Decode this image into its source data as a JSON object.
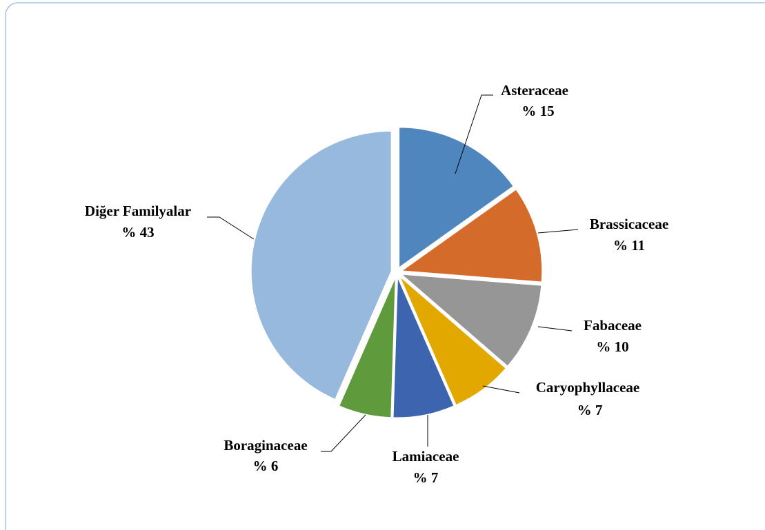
{
  "chart_data": {
    "type": "pie",
    "categories": [
      "Asteraceae",
      "Brassicaceae",
      "Fabaceae",
      "Caryophyllaceae",
      "Lamiaceae",
      "Boraginaceae",
      "Diğer Familyalar"
    ],
    "values": [
      15,
      11,
      10,
      7,
      7,
      6,
      43
    ],
    "value_labels": [
      "% 15",
      "% 11",
      "% 10",
      "% 7",
      "% 7",
      "% 6",
      "% 43"
    ],
    "colors": [
      "#4f86bd",
      "#d46b2a",
      "#969696",
      "#e2a800",
      "#3d64ae",
      "#5f9a3c",
      "#98b9de"
    ]
  }
}
